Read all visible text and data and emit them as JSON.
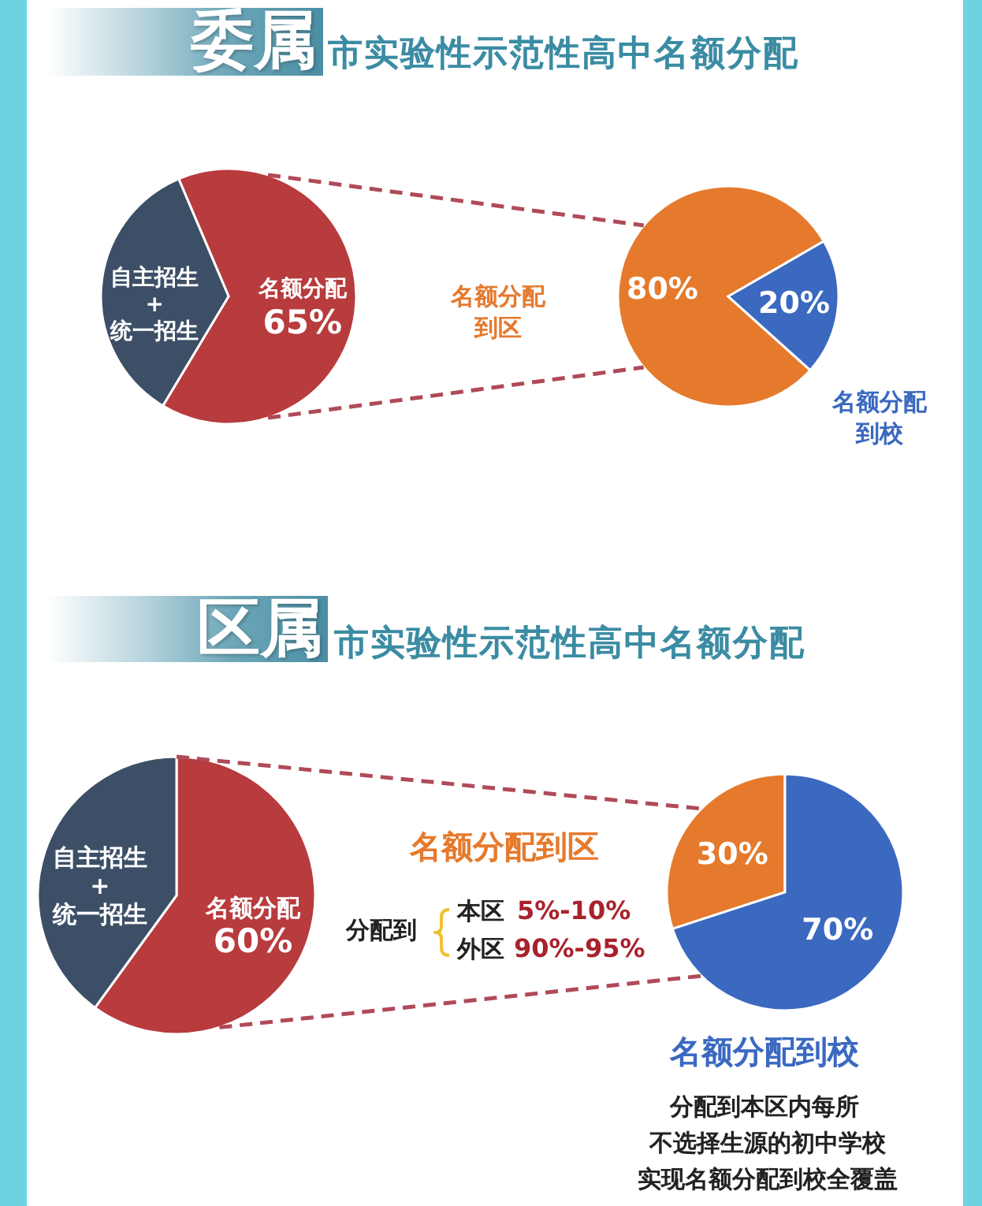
{
  "chart_data": [
    {
      "type": "pie",
      "title": "委属",
      "subtitle": "市实验性示范性高中名额分配",
      "categories": [
        "名额分配",
        "自主招生\n+\n统一招生"
      ],
      "values": [
        65,
        35
      ],
      "colors": [
        "#b83b3d",
        "#3c4f66"
      ],
      "value_labels": [
        "65%",
        null
      ]
    },
    {
      "type": "pie",
      "categories": [
        "名额分配到区",
        "名额分配到校"
      ],
      "values": [
        80,
        20
      ],
      "colors": [
        "#e57a2d",
        "#3b69c0"
      ],
      "value_labels": [
        "80%",
        "20%"
      ]
    },
    {
      "type": "pie",
      "title": "区属",
      "subtitle": "市实验性示范性高中名额分配",
      "categories": [
        "名额分配",
        "自主招生\n+\n统一招生"
      ],
      "values": [
        60,
        40
      ],
      "colors": [
        "#b83b3d",
        "#3c4f66"
      ],
      "value_labels": [
        "60%",
        null
      ]
    },
    {
      "type": "pie",
      "categories": [
        "名额分配到区",
        "名额分配到校"
      ],
      "values": [
        30,
        70
      ],
      "colors": [
        "#e57a2d",
        "#3b69c0"
      ],
      "value_labels": [
        "30%",
        "70%"
      ],
      "annotations": [
        "分配到",
        "本区",
        "5%-10%",
        "外区",
        "90%-95%",
        "分配到本区内每所",
        "不选择生源的初中学校",
        "实现名额分配到校全覆盖"
      ]
    }
  ]
}
